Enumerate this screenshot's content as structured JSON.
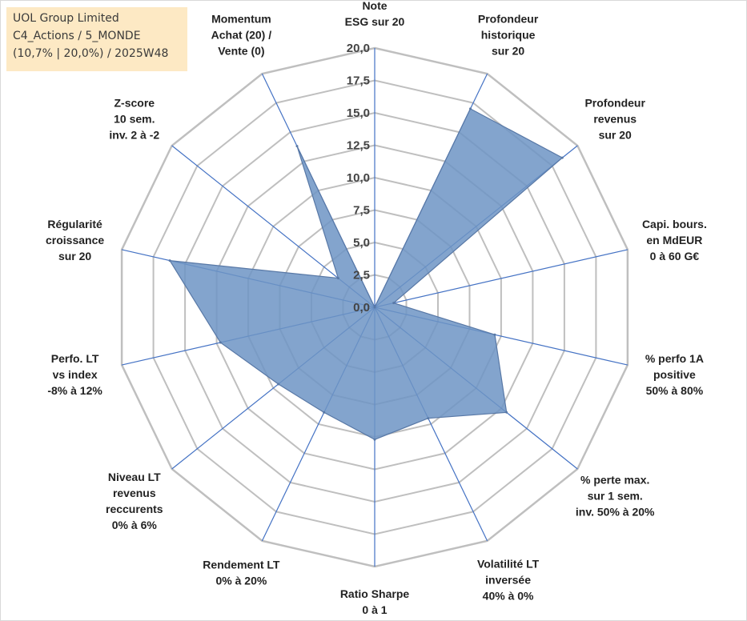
{
  "info_box": {
    "line1": "UOL Group Limited",
    "line2": "C4_Actions / 5_MONDE",
    "line3": "(10,7% | 20,0%) / 2025W48"
  },
  "chart_data": {
    "type": "radar",
    "title": "",
    "axes": [
      [
        "Note",
        "ESG sur 20"
      ],
      [
        "Profondeur",
        "historique",
        "sur 20"
      ],
      [
        "Profondeur",
        "revenus",
        "sur 20"
      ],
      [
        "Capi. bours.",
        "en MdEUR",
        "0 à 60 G€"
      ],
      [
        "% perfo 1A",
        "positive",
        "50% à 80%"
      ],
      [
        "% perte max.",
        "sur 1 sem.",
        "inv. 50% à 20%"
      ],
      [
        "Volatilité LT",
        "inversée",
        "40% à 0%"
      ],
      [
        "Ratio Sharpe",
        "0 à 1"
      ],
      [
        "Rendement LT",
        "0% à 20%"
      ],
      [
        "Niveau LT",
        "revenus",
        "reccurents",
        "0% à 6%"
      ],
      [
        "Perfo. LT",
        "vs index",
        "-8% à 12%"
      ],
      [
        "Régularité",
        "croissance",
        "sur 20"
      ],
      [
        "Z-score",
        "10 sem.",
        "inv. 2 à -2"
      ],
      [
        "Momentum",
        "Achat (20) /",
        "Vente (0)"
      ]
    ],
    "series": [
      {
        "name": "UOL Group Limited",
        "values": [
          0,
          17.0,
          18.5,
          1.5,
          9.5,
          13.0,
          9.5,
          10.2,
          9.0,
          9.5,
          12.2,
          16.2,
          3.6,
          13.8
        ]
      }
    ],
    "rlim": [
      0,
      20
    ],
    "ticks": [
      "0,0",
      "2,5",
      "5,0",
      "7,5",
      "10,0",
      "12,5",
      "15,0",
      "17,5",
      "20,0"
    ],
    "tick_values": [
      0,
      2.5,
      5,
      7.5,
      10,
      12.5,
      15,
      17.5,
      20
    ],
    "colors": {
      "fill": "#6d94c4",
      "fill_opacity": 0.85,
      "stroke": "#5878a6",
      "grid": "#bfbfbf",
      "spoke": "#4472c4"
    }
  }
}
